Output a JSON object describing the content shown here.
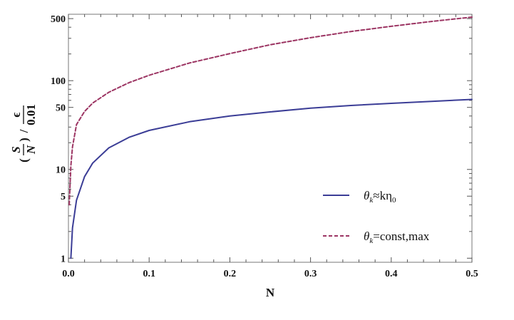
{
  "chart_data": {
    "type": "line",
    "xlabel": "N",
    "ylabel": {
      "numerator": "S",
      "denominator": "N",
      "epsilon": "ϵ",
      "epsilon_denominator": "0.01"
    },
    "xlim": [
      0.0,
      0.5
    ],
    "ylim": [
      0.9,
      560
    ],
    "yscale": "log",
    "grid": false,
    "legend_position": "lower-right",
    "x_ticks": [
      "0.0",
      "0.1",
      "0.2",
      "0.3",
      "0.4",
      "0.5"
    ],
    "y_ticks": [
      "1",
      "5",
      "10",
      "50",
      "100",
      "500"
    ],
    "series": [
      {
        "name": "θk≈kη0",
        "name_parts": {
          "theta": "θ",
          "sub1": "k",
          "rest": "≈kη",
          "sub2": "0"
        },
        "color": "#3b3d96",
        "dash": "solid",
        "x": [
          0.003,
          0.005,
          0.01,
          0.02,
          0.03,
          0.05,
          0.075,
          0.1,
          0.15,
          0.2,
          0.25,
          0.3,
          0.35,
          0.4,
          0.45,
          0.5
        ],
        "y": [
          1.0,
          2.2,
          4.5,
          8.3,
          11.8,
          17.5,
          23.0,
          27.5,
          34.5,
          40.0,
          44.5,
          49.0,
          52.5,
          55.5,
          58.5,
          61.5
        ]
      },
      {
        "name": "θk=const,max",
        "name_parts": {
          "theta": "θ",
          "sub1": "k",
          "rest": "=const,max"
        },
        "color": "#9c3563",
        "dash": "dashed",
        "x": [
          0.001,
          0.003,
          0.005,
          0.01,
          0.02,
          0.03,
          0.05,
          0.075,
          0.1,
          0.15,
          0.2,
          0.25,
          0.3,
          0.35,
          0.4,
          0.45,
          0.5
        ],
        "y": [
          4.0,
          11.0,
          18.0,
          32.0,
          45.0,
          56.0,
          74.0,
          95.0,
          115.0,
          158.0,
          202.0,
          254.0,
          305.0,
          358.0,
          410.0,
          465.0,
          520.0
        ]
      }
    ]
  }
}
